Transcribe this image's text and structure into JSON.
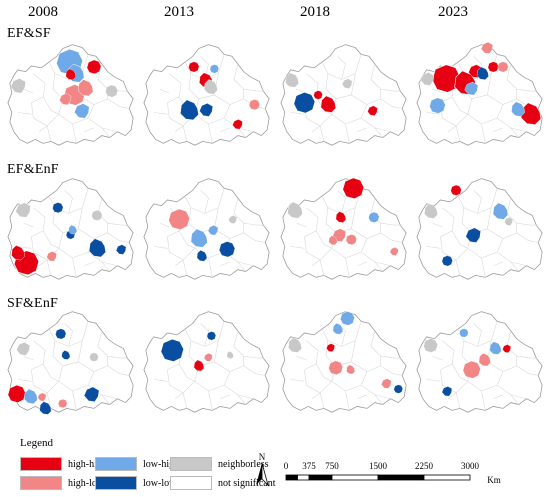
{
  "years": [
    "2008",
    "2013",
    "2018",
    "2023"
  ],
  "rows": [
    {
      "label": "EF&SF",
      "maps": [
        [
          {
            "c": "high-low",
            "x": 72,
            "y": 62,
            "s": 1.2
          },
          {
            "c": "high-low",
            "x": 83,
            "y": 55,
            "s": 0.9
          },
          {
            "c": "high-low",
            "x": 63,
            "y": 66,
            "s": 0.7
          },
          {
            "c": "low-high",
            "x": 67,
            "y": 28,
            "s": 1.5
          },
          {
            "c": "low-high",
            "x": 73,
            "y": 40,
            "s": 1.0
          },
          {
            "c": "low-high",
            "x": 80,
            "y": 78,
            "s": 0.9
          },
          {
            "c": "high-high",
            "x": 92,
            "y": 33,
            "s": 0.8
          },
          {
            "c": "high-high",
            "x": 68,
            "y": 41,
            "s": 0.6
          },
          {
            "c": "neighborless",
            "x": 15,
            "y": 52,
            "s": 0.9
          },
          {
            "c": "neighborless",
            "x": 110,
            "y": 58,
            "s": 0.7
          }
        ],
        [
          {
            "c": "high-high",
            "x": 55,
            "y": 33,
            "s": 0.6
          },
          {
            "c": "high-high",
            "x": 67,
            "y": 47,
            "s": 0.8
          },
          {
            "c": "high-high",
            "x": 100,
            "y": 92,
            "s": 0.6
          },
          {
            "c": "low-high",
            "x": 76,
            "y": 35,
            "s": 0.5
          },
          {
            "c": "low-low",
            "x": 50,
            "y": 78,
            "s": 1.1
          },
          {
            "c": "low-low",
            "x": 68,
            "y": 77,
            "s": 0.8
          },
          {
            "c": "high-low",
            "x": 117,
            "y": 72,
            "s": 0.6
          },
          {
            "c": "neighborless",
            "x": 72,
            "y": 54,
            "s": 0.8
          }
        ],
        [
          {
            "c": "low-low",
            "x": 28,
            "y": 70,
            "s": 1.2
          },
          {
            "c": "high-high",
            "x": 52,
            "y": 72,
            "s": 0.9
          },
          {
            "c": "high-high",
            "x": 98,
            "y": 78,
            "s": 0.6
          },
          {
            "c": "high-high",
            "x": 42,
            "y": 62,
            "s": 0.5
          },
          {
            "c": "neighborless",
            "x": 15,
            "y": 47,
            "s": 0.8
          },
          {
            "c": "neighborless",
            "x": 72,
            "y": 50,
            "s": 0.6
          }
        ],
        [
          {
            "c": "high-high",
            "x": 34,
            "y": 45,
            "s": 1.6
          },
          {
            "c": "high-high",
            "x": 53,
            "y": 50,
            "s": 1.3
          },
          {
            "c": "high-high",
            "x": 64,
            "y": 37,
            "s": 0.8
          },
          {
            "c": "high-high",
            "x": 82,
            "y": 33,
            "s": 0.6
          },
          {
            "c": "high-high",
            "x": 120,
            "y": 82,
            "s": 1.2
          },
          {
            "c": "low-high",
            "x": 60,
            "y": 55,
            "s": 0.8
          },
          {
            "c": "low-high",
            "x": 25,
            "y": 73,
            "s": 0.9
          },
          {
            "c": "low-high",
            "x": 107,
            "y": 77,
            "s": 0.8
          },
          {
            "c": "high-low",
            "x": 76,
            "y": 13,
            "s": 0.7
          },
          {
            "c": "high-low",
            "x": 92,
            "y": 33,
            "s": 0.6
          },
          {
            "c": "low-low",
            "x": 71,
            "y": 40,
            "s": 0.7
          },
          {
            "c": "neighborless",
            "x": 15,
            "y": 45,
            "s": 0.8
          }
        ]
      ]
    },
    {
      "label": "EF&EnF",
      "maps": [
        [
          {
            "c": "high-high",
            "x": 23,
            "y": 97,
            "s": 1.4
          },
          {
            "c": "high-high",
            "x": 14,
            "y": 87,
            "s": 0.8
          },
          {
            "c": "high-low",
            "x": 49,
            "y": 90,
            "s": 0.6
          },
          {
            "c": "low-low",
            "x": 55,
            "y": 40,
            "s": 0.6
          },
          {
            "c": "low-low",
            "x": 95,
            "y": 82,
            "s": 1.0
          },
          {
            "c": "low-low",
            "x": 120,
            "y": 83,
            "s": 0.6
          },
          {
            "c": "low-low",
            "x": 68,
            "y": 68,
            "s": 0.5
          },
          {
            "c": "low-high",
            "x": 70,
            "y": 63,
            "s": 0.5
          },
          {
            "c": "neighborless",
            "x": 20,
            "y": 42,
            "s": 0.9
          },
          {
            "c": "neighborless",
            "x": 95,
            "y": 48,
            "s": 0.6
          }
        ],
        [
          {
            "c": "high-low",
            "x": 40,
            "y": 52,
            "s": 1.2
          },
          {
            "c": "low-high",
            "x": 60,
            "y": 72,
            "s": 1.0
          },
          {
            "c": "low-high",
            "x": 75,
            "y": 63,
            "s": 0.6
          },
          {
            "c": "low-low",
            "x": 89,
            "y": 83,
            "s": 0.9
          },
          {
            "c": "low-low",
            "x": 63,
            "y": 90,
            "s": 0.6
          },
          {
            "c": "neighborless",
            "x": 95,
            "y": 52,
            "s": 0.5
          }
        ],
        [
          {
            "c": "high-high",
            "x": 78,
            "y": 20,
            "s": 1.2
          },
          {
            "c": "high-high",
            "x": 65,
            "y": 50,
            "s": 0.6
          },
          {
            "c": "high-low",
            "x": 64,
            "y": 68,
            "s": 0.8
          },
          {
            "c": "high-low",
            "x": 76,
            "y": 73,
            "s": 0.6
          },
          {
            "c": "high-low",
            "x": 57,
            "y": 74,
            "s": 0.5
          },
          {
            "c": "high-low",
            "x": 120,
            "y": 85,
            "s": 0.5
          },
          {
            "c": "low-high",
            "x": 99,
            "y": 50,
            "s": 0.6
          },
          {
            "c": "neighborless",
            "x": 18,
            "y": 43,
            "s": 0.9
          }
        ],
        [
          {
            "c": "high-high",
            "x": 44,
            "y": 22,
            "s": 0.6
          },
          {
            "c": "low-high",
            "x": 89,
            "y": 44,
            "s": 0.9
          },
          {
            "c": "low-low",
            "x": 62,
            "y": 68,
            "s": 0.9
          },
          {
            "c": "low-low",
            "x": 35,
            "y": 95,
            "s": 0.6
          },
          {
            "c": "neighborless",
            "x": 18,
            "y": 44,
            "s": 0.8
          },
          {
            "c": "neighborless",
            "x": 98,
            "y": 54,
            "s": 0.5
          }
        ]
      ]
    },
    {
      "label": "SF&EnF",
      "maps": [
        [
          {
            "c": "high-high",
            "x": 13,
            "y": 95,
            "s": 1.0
          },
          {
            "c": "low-high",
            "x": 27,
            "y": 98,
            "s": 0.8
          },
          {
            "c": "high-low",
            "x": 39,
            "y": 98,
            "s": 0.5
          },
          {
            "c": "high-low",
            "x": 60,
            "y": 105,
            "s": 0.5
          },
          {
            "c": "low-low",
            "x": 42,
            "y": 110,
            "s": 0.7
          },
          {
            "c": "low-low",
            "x": 90,
            "y": 95,
            "s": 0.9
          },
          {
            "c": "low-low",
            "x": 58,
            "y": 33,
            "s": 0.6
          },
          {
            "c": "low-low",
            "x": 63,
            "y": 55,
            "s": 0.5
          },
          {
            "c": "neighborless",
            "x": 20,
            "y": 48,
            "s": 0.8
          },
          {
            "c": "neighborless",
            "x": 92,
            "y": 57,
            "s": 0.5
          }
        ],
        [
          {
            "c": "low-low",
            "x": 33,
            "y": 50,
            "s": 1.3
          },
          {
            "c": "high-high",
            "x": 60,
            "y": 66,
            "s": 0.6
          },
          {
            "c": "high-low",
            "x": 70,
            "y": 57,
            "s": 0.5
          },
          {
            "c": "low-low",
            "x": 73,
            "y": 35,
            "s": 0.5
          },
          {
            "c": "neighborless",
            "x": 92,
            "y": 55,
            "s": 0.4
          }
        ],
        [
          {
            "c": "low-high",
            "x": 72,
            "y": 17,
            "s": 0.8
          },
          {
            "c": "low-high",
            "x": 62,
            "y": 28,
            "s": 0.6
          },
          {
            "c": "high-high",
            "x": 55,
            "y": 47,
            "s": 0.5
          },
          {
            "c": "high-low",
            "x": 60,
            "y": 68,
            "s": 0.8
          },
          {
            "c": "high-low",
            "x": 75,
            "y": 70,
            "s": 0.5
          },
          {
            "c": "high-low",
            "x": 112,
            "y": 84,
            "s": 0.6
          },
          {
            "c": "low-low",
            "x": 124,
            "y": 90,
            "s": 0.5
          },
          {
            "c": "neighborless",
            "x": 18,
            "y": 45,
            "s": 0.8
          }
        ],
        [
          {
            "c": "low-high",
            "x": 52,
            "y": 32,
            "s": 0.5
          },
          {
            "c": "low-high",
            "x": 84,
            "y": 48,
            "s": 0.7
          },
          {
            "c": "high-high",
            "x": 96,
            "y": 48,
            "s": 0.5
          },
          {
            "c": "high-low",
            "x": 60,
            "y": 70,
            "s": 1.0
          },
          {
            "c": "high-low",
            "x": 73,
            "y": 60,
            "s": 0.7
          },
          {
            "c": "low-low",
            "x": 35,
            "y": 92,
            "s": 0.6
          },
          {
            "c": "neighborless",
            "x": 18,
            "y": 45,
            "s": 0.8
          }
        ]
      ]
    }
  ],
  "colors": {
    "high-high": "#e60012",
    "high-low": "#f28585",
    "low-high": "#6fa9e8",
    "low-low": "#0a4ea1",
    "neighborless": "#c8c8c8",
    "not significant": "#ffffff",
    "outline": "#9a9a9a",
    "inner": "#d8d8d8"
  },
  "legend": {
    "title": "Legend",
    "items": [
      {
        "label": "high-high",
        "color": "#e60012"
      },
      {
        "label": "low-high",
        "color": "#6fa9e8"
      },
      {
        "label": "neighborless",
        "color": "#c8c8c8"
      },
      {
        "label": "high-low",
        "color": "#f28585"
      },
      {
        "label": "low-low",
        "color": "#0a4ea1"
      },
      {
        "label": "not significant",
        "color": "#ffffff"
      }
    ]
  },
  "north": {
    "label": "N"
  },
  "scale": {
    "ticks": [
      "0",
      "375",
      "750",
      "1500",
      "2250",
      "3000"
    ],
    "unit": "Km"
  }
}
